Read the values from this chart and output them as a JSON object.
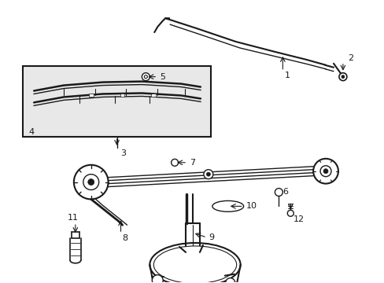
{
  "bg_color": "#ffffff",
  "line_color": "#1a1a1a",
  "figsize": [
    4.89,
    3.6
  ],
  "dpi": 100,
  "gray_fill": "#e8e8e8"
}
